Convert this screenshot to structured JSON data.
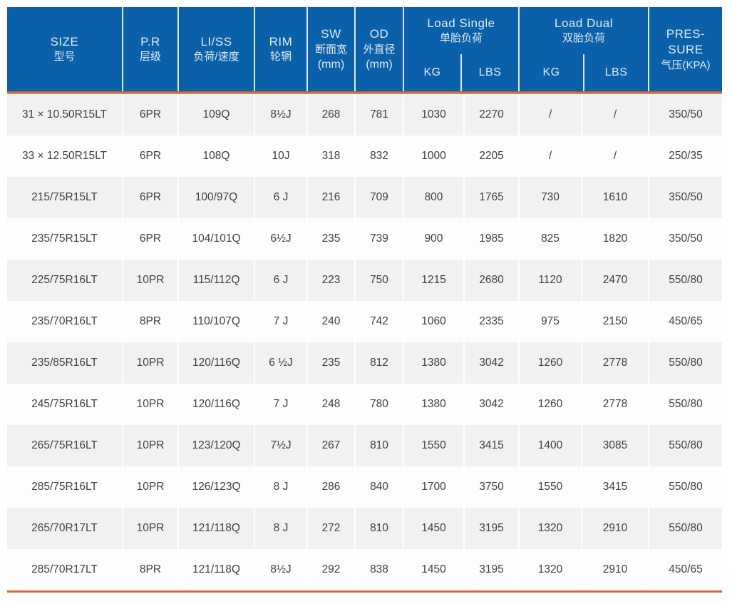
{
  "colors": {
    "header_blue": "#0b60aa",
    "accent_orange": "#d2693a",
    "row_alt_gray": "#f1f1f1",
    "body_text": "#404040"
  },
  "header": {
    "size": {
      "en": "SIZE",
      "zh": "型号"
    },
    "pr": {
      "en": "P.R",
      "zh": "层级"
    },
    "liss": {
      "en": "LI/SS",
      "zh": "负荷/速度"
    },
    "rim": {
      "en": "RIM",
      "zh": "轮辋"
    },
    "sw": {
      "en": "SW",
      "zh": "断面宽",
      "unit": "(mm)"
    },
    "od": {
      "en": "OD",
      "zh": "外直径",
      "unit": "(mm)"
    },
    "load_single": {
      "en": "Load Single",
      "zh": "单胎负荷",
      "kg": "KG",
      "lbs": "LBS"
    },
    "load_dual": {
      "en": "Load Dual",
      "zh": "双胎负荷",
      "kg": "KG",
      "lbs": "LBS"
    },
    "pressure": {
      "en1": "PRES-",
      "en2": "SURE",
      "zh": "气压(KPA)"
    }
  },
  "rows": [
    {
      "size": "31 × 10.50R15LT",
      "pr": "6PR",
      "liss": "109Q",
      "rim": "8½J",
      "sw": "268",
      "od": "781",
      "ls_kg": "1030",
      "ls_lbs": "2270",
      "ld_kg": "/",
      "ld_lbs": "/",
      "pressure": "350/50"
    },
    {
      "size": "33 × 12.50R15LT",
      "pr": "6PR",
      "liss": "108Q",
      "rim": "10J",
      "sw": "318",
      "od": "832",
      "ls_kg": "1000",
      "ls_lbs": "2205",
      "ld_kg": "/",
      "ld_lbs": "/",
      "pressure": "250/35"
    },
    {
      "size": "215/75R15LT",
      "pr": "6PR",
      "liss": "100/97Q",
      "rim": "6 J",
      "sw": "216",
      "od": "709",
      "ls_kg": "800",
      "ls_lbs": "1765",
      "ld_kg": "730",
      "ld_lbs": "1610",
      "pressure": "350/50"
    },
    {
      "size": "235/75R15LT",
      "pr": "6PR",
      "liss": "104/101Q",
      "rim": "6½J",
      "sw": "235",
      "od": "739",
      "ls_kg": "900",
      "ls_lbs": "1985",
      "ld_kg": "825",
      "ld_lbs": "1820",
      "pressure": "350/50"
    },
    {
      "size": "225/75R16LT",
      "pr": "10PR",
      "liss": "115/112Q",
      "rim": "6 J",
      "sw": "223",
      "od": "750",
      "ls_kg": "1215",
      "ls_lbs": "2680",
      "ld_kg": "1120",
      "ld_lbs": "2470",
      "pressure": "550/80"
    },
    {
      "size": "235/70R16LT",
      "pr": "8PR",
      "liss": "110/107Q",
      "rim": "7 J",
      "sw": "240",
      "od": "742",
      "ls_kg": "1060",
      "ls_lbs": "2335",
      "ld_kg": "975",
      "ld_lbs": "2150",
      "pressure": "450/65"
    },
    {
      "size": "235/85R16LT",
      "pr": "10PR",
      "liss": "120/116Q",
      "rim": "6 ½J",
      "sw": "235",
      "od": "812",
      "ls_kg": "1380",
      "ls_lbs": "3042",
      "ld_kg": "1260",
      "ld_lbs": "2778",
      "pressure": "550/80"
    },
    {
      "size": "245/75R16LT",
      "pr": "10PR",
      "liss": "120/116Q",
      "rim": "7 J",
      "sw": "248",
      "od": "780",
      "ls_kg": "1380",
      "ls_lbs": "3042",
      "ld_kg": "1260",
      "ld_lbs": "2778",
      "pressure": "550/80"
    },
    {
      "size": "265/75R16LT",
      "pr": "10PR",
      "liss": "123/120Q",
      "rim": "7½J",
      "sw": "267",
      "od": "810",
      "ls_kg": "1550",
      "ls_lbs": "3415",
      "ld_kg": "1400",
      "ld_lbs": "3085",
      "pressure": "550/80"
    },
    {
      "size": "285/75R16LT",
      "pr": "10PR",
      "liss": "126/123Q",
      "rim": "8 J",
      "sw": "286",
      "od": "840",
      "ls_kg": "1700",
      "ls_lbs": "3750",
      "ld_kg": "1550",
      "ld_lbs": "3415",
      "pressure": "550/80"
    },
    {
      "size": "265/70R17LT",
      "pr": "10PR",
      "liss": "121/118Q",
      "rim": "8 J",
      "sw": "272",
      "od": "810",
      "ls_kg": "1450",
      "ls_lbs": "3195",
      "ld_kg": "1320",
      "ld_lbs": "2910",
      "pressure": "550/80"
    },
    {
      "size": "285/70R17LT",
      "pr": "8PR",
      "liss": "121/118Q",
      "rim": "8½J",
      "sw": "292",
      "od": "838",
      "ls_kg": "1450",
      "ls_lbs": "3195",
      "ld_kg": "1320",
      "ld_lbs": "2910",
      "pressure": "450/65"
    }
  ]
}
